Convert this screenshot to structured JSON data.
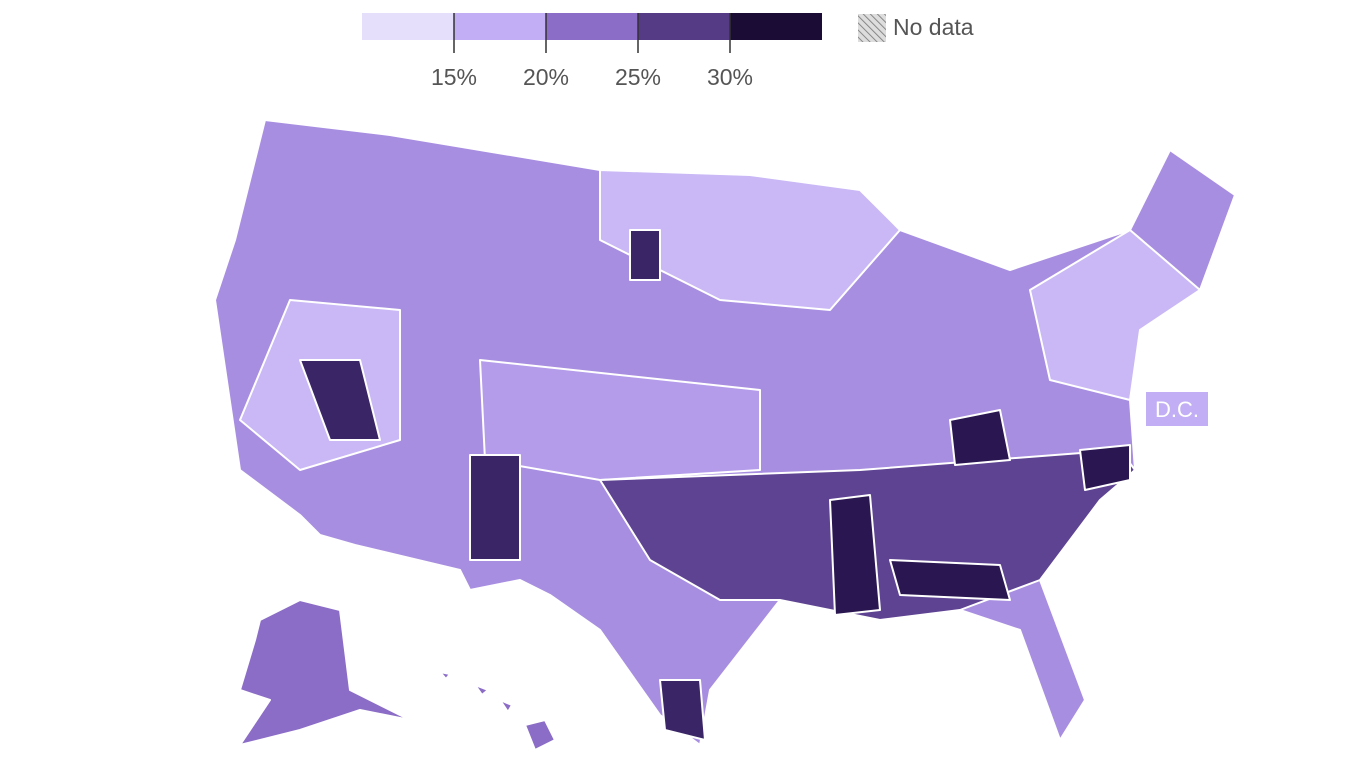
{
  "legend": {
    "colors": [
      "#e6dffc",
      "#c1aef4",
      "#8b6cc6",
      "#553a86",
      "#1b0c35"
    ],
    "ticks": [
      {
        "value": 15,
        "label": "15%"
      },
      {
        "value": 20,
        "label": "20%"
      },
      {
        "value": 25,
        "label": "25%"
      },
      {
        "value": 30,
        "label": "30%"
      }
    ],
    "no_data": "No data"
  },
  "dc_label": "D.C."
}
